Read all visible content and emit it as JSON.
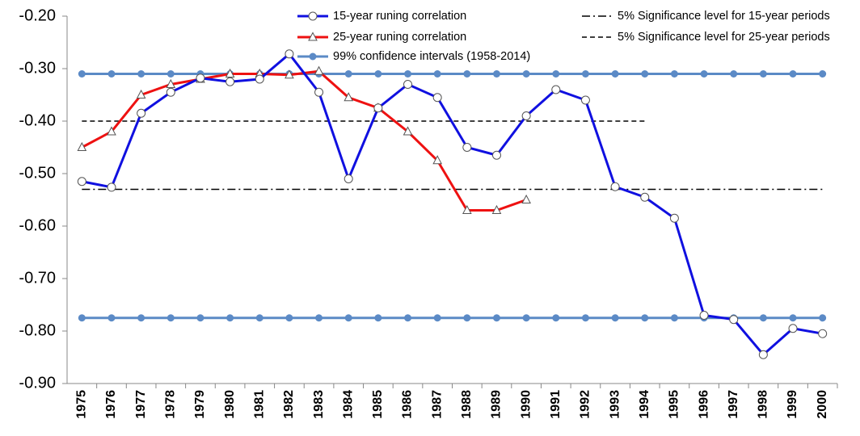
{
  "chart_data": {
    "type": "line",
    "categories": [
      "1975",
      "1976",
      "1977",
      "1978",
      "1979",
      "1980",
      "1981",
      "1982",
      "1983",
      "1984",
      "1985",
      "1986",
      "1987",
      "1988",
      "1989",
      "1990",
      "1991",
      "1992",
      "1993",
      "1994",
      "1995",
      "1996",
      "1997",
      "1998",
      "1999",
      "2000"
    ],
    "ylim": [
      -0.9,
      -0.2
    ],
    "yticks": [
      {
        "value": -0.9,
        "label": "-0.90"
      },
      {
        "value": -0.8,
        "label": "-0.80"
      },
      {
        "value": -0.7,
        "label": "-0.70"
      },
      {
        "value": -0.6,
        "label": "-0.60"
      },
      {
        "value": -0.5,
        "label": "-0.50"
      },
      {
        "value": -0.4,
        "label": "-0.40"
      },
      {
        "value": -0.3,
        "label": "-0.30"
      },
      {
        "value": -0.2,
        "label": "-0.20"
      }
    ],
    "series": [
      {
        "name": "15-year runing correlation",
        "color": "#1010e0",
        "marker": "circle",
        "dash": "solid",
        "values": [
          -0.515,
          -0.526,
          -0.385,
          -0.345,
          -0.318,
          -0.325,
          -0.32,
          -0.272,
          -0.345,
          -0.51,
          -0.375,
          -0.33,
          -0.355,
          -0.45,
          -0.465,
          -0.39,
          -0.34,
          -0.36,
          -0.525,
          -0.545,
          -0.585,
          -0.77,
          -0.778,
          -0.845,
          -0.795,
          -0.805
        ]
      },
      {
        "name": "25-year runing correlation",
        "color": "#ee1111",
        "marker": "triangle",
        "dash": "solid",
        "values": [
          -0.45,
          -0.42,
          -0.35,
          -0.33,
          -0.32,
          -0.31,
          -0.31,
          -0.312,
          -0.305,
          -0.355,
          -0.375,
          -0.42,
          -0.475,
          -0.57,
          -0.57,
          -0.55,
          null,
          null,
          null,
          null,
          null,
          null,
          null,
          null,
          null,
          null
        ]
      },
      {
        "name": "99% confidence intervals (1958-2014)",
        "color": "#5b8ac6",
        "marker": "dot",
        "dash": "solid",
        "values": [
          -0.31,
          -0.31,
          -0.31,
          -0.31,
          -0.31,
          -0.31,
          -0.31,
          -0.31,
          -0.31,
          -0.31,
          -0.31,
          -0.31,
          -0.31,
          -0.31,
          -0.31,
          -0.31,
          -0.31,
          -0.31,
          -0.31,
          -0.31,
          -0.31,
          -0.31,
          -0.31,
          -0.31,
          -0.31,
          -0.31
        ]
      },
      {
        "name": "99% confidence intervals (1958-2014)",
        "color": "#5b8ac6",
        "marker": "dot",
        "dash": "solid",
        "legend": false,
        "values": [
          -0.775,
          -0.775,
          -0.775,
          -0.775,
          -0.775,
          -0.775,
          -0.775,
          -0.775,
          -0.775,
          -0.775,
          -0.775,
          -0.775,
          -0.775,
          -0.775,
          -0.775,
          -0.775,
          -0.775,
          -0.775,
          -0.775,
          -0.775,
          -0.775,
          -0.775,
          -0.775,
          -0.775,
          -0.775,
          -0.775
        ]
      },
      {
        "name": "5% Significance level for 15-year periods",
        "color": "#000000",
        "marker": "none",
        "dash": "dashdot",
        "values": [
          -0.53,
          -0.53,
          -0.53,
          -0.53,
          -0.53,
          -0.53,
          -0.53,
          -0.53,
          -0.53,
          -0.53,
          -0.53,
          -0.53,
          -0.53,
          -0.53,
          -0.53,
          -0.53,
          -0.53,
          -0.53,
          -0.53,
          -0.53,
          -0.53,
          -0.53,
          -0.53,
          -0.53,
          -0.53,
          -0.53
        ]
      },
      {
        "name": "5% Significance level for 25-year periods",
        "color": "#000000",
        "marker": "none",
        "dash": "dash",
        "values": [
          -0.4,
          -0.4,
          -0.4,
          -0.4,
          -0.4,
          -0.4,
          -0.4,
          -0.4,
          -0.4,
          -0.4,
          -0.4,
          -0.4,
          -0.4,
          -0.4,
          -0.4,
          -0.4,
          -0.4,
          -0.4,
          -0.4,
          -0.4,
          null,
          null,
          null,
          null,
          null,
          null
        ]
      }
    ]
  }
}
